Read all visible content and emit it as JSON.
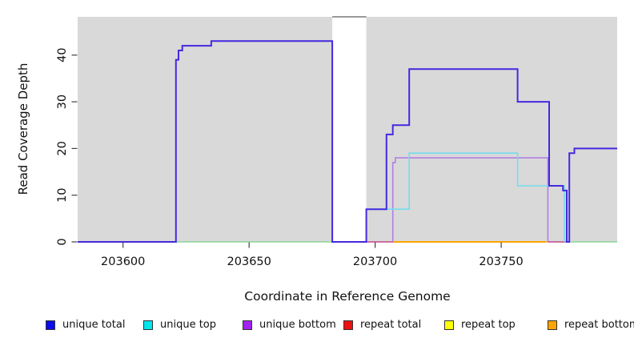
{
  "figure": {
    "background": "#ffffff",
    "plot_background": "#d9d9d9"
  },
  "chart_data": {
    "type": "line",
    "subtype": "step",
    "title": "",
    "xlabel": "Coordinate in Reference Genome",
    "ylabel": "Read Coverage Depth",
    "xlim": [
      203582,
      203796
    ],
    "ylim": [
      0,
      48.2
    ],
    "x_ticks": [
      203600,
      203650,
      203700,
      203750
    ],
    "y_ticks": [
      0,
      10,
      20,
      30,
      40
    ],
    "grid": false,
    "tick_color": "#404040",
    "label_color": "#111111",
    "gap_band": {
      "x_from": 203683,
      "x_to": 203696.5,
      "fill": "#ffffff",
      "top_border": "#999999"
    },
    "series": [
      {
        "name": "baseline green",
        "color": "#8ed695",
        "line_width": 1.6,
        "segments": [
          [
            [
              203621,
              0
            ],
            [
              203683,
              0
            ]
          ],
          [
            [
              203777,
              0
            ],
            [
              203796,
              0
            ]
          ]
        ]
      },
      {
        "name": "repeat bottom",
        "color": "#ffa500",
        "line_width": 2,
        "segments": [
          [
            [
              203707,
              0
            ],
            [
              203768,
              0
            ]
          ]
        ]
      },
      {
        "name": "unique bottom",
        "color": "#b27fe3",
        "line_width": 1.6,
        "segments": [
          [
            [
              203696.5,
              0
            ],
            [
              203707,
              0
            ],
            [
              203707,
              17
            ],
            [
              203708,
              17
            ],
            [
              203708,
              18
            ],
            [
              203768.5,
              18
            ],
            [
              203768.5,
              0
            ],
            [
              203776,
              0
            ]
          ]
        ]
      },
      {
        "name": "repeat total",
        "color": "#c9598a",
        "line_width": 1.6,
        "segments": [
          [
            [
              203696.5,
              0
            ],
            [
              203707,
              0
            ]
          ],
          [
            [
              203768.5,
              0
            ],
            [
              203776,
              0
            ]
          ]
        ]
      },
      {
        "name": "unique top",
        "color": "#72deed",
        "line_width": 1.6,
        "segments": [
          [
            [
              203696.5,
              7
            ],
            [
              203713.5,
              7
            ],
            [
              203713.5,
              19
            ],
            [
              203756.5,
              19
            ],
            [
              203756.5,
              12
            ],
            [
              203775,
              12
            ],
            [
              203775,
              0
            ]
          ]
        ]
      },
      {
        "name": "unique total",
        "color": "#4329e0",
        "line_width": 2,
        "segments": [
          [
            [
              203582,
              0
            ],
            [
              203621,
              0
            ],
            [
              203621,
              39
            ],
            [
              203622,
              39
            ],
            [
              203622,
              41
            ],
            [
              203623.5,
              41
            ],
            [
              203623.5,
              42
            ],
            [
              203635,
              42
            ],
            [
              203635,
              43
            ],
            [
              203683,
              43
            ],
            [
              203683,
              0
            ],
            [
              203696.5,
              0
            ],
            [
              203696.5,
              7
            ],
            [
              203704.5,
              7
            ],
            [
              203704.5,
              23
            ],
            [
              203707,
              23
            ],
            [
              203707,
              25
            ],
            [
              203713.5,
              25
            ],
            [
              203713.5,
              37
            ],
            [
              203756.5,
              37
            ],
            [
              203756.5,
              30
            ],
            [
              203769,
              30
            ],
            [
              203769,
              12
            ],
            [
              203774.5,
              12
            ],
            [
              203774.5,
              11
            ],
            [
              203776,
              11
            ],
            [
              203776,
              0
            ],
            [
              203777,
              0
            ],
            [
              203777,
              19
            ],
            [
              203779,
              19
            ],
            [
              203779,
              20
            ],
            [
              203796,
              20
            ]
          ]
        ]
      },
      {
        "name": "repeat top",
        "color": "#ffff00",
        "line_width": 1.6,
        "segments": []
      }
    ],
    "legend": {
      "position": "bottom",
      "items": [
        {
          "label": "unique total",
          "color": "#0b0bee"
        },
        {
          "label": "unique top",
          "color": "#00e6ee"
        },
        {
          "label": "unique bottom",
          "color": "#a321f0"
        },
        {
          "label": "repeat total",
          "color": "#ee1111"
        },
        {
          "label": "repeat top",
          "color": "#ffff00"
        },
        {
          "label": "repeat bottom",
          "color": "#ffa500"
        }
      ]
    }
  }
}
